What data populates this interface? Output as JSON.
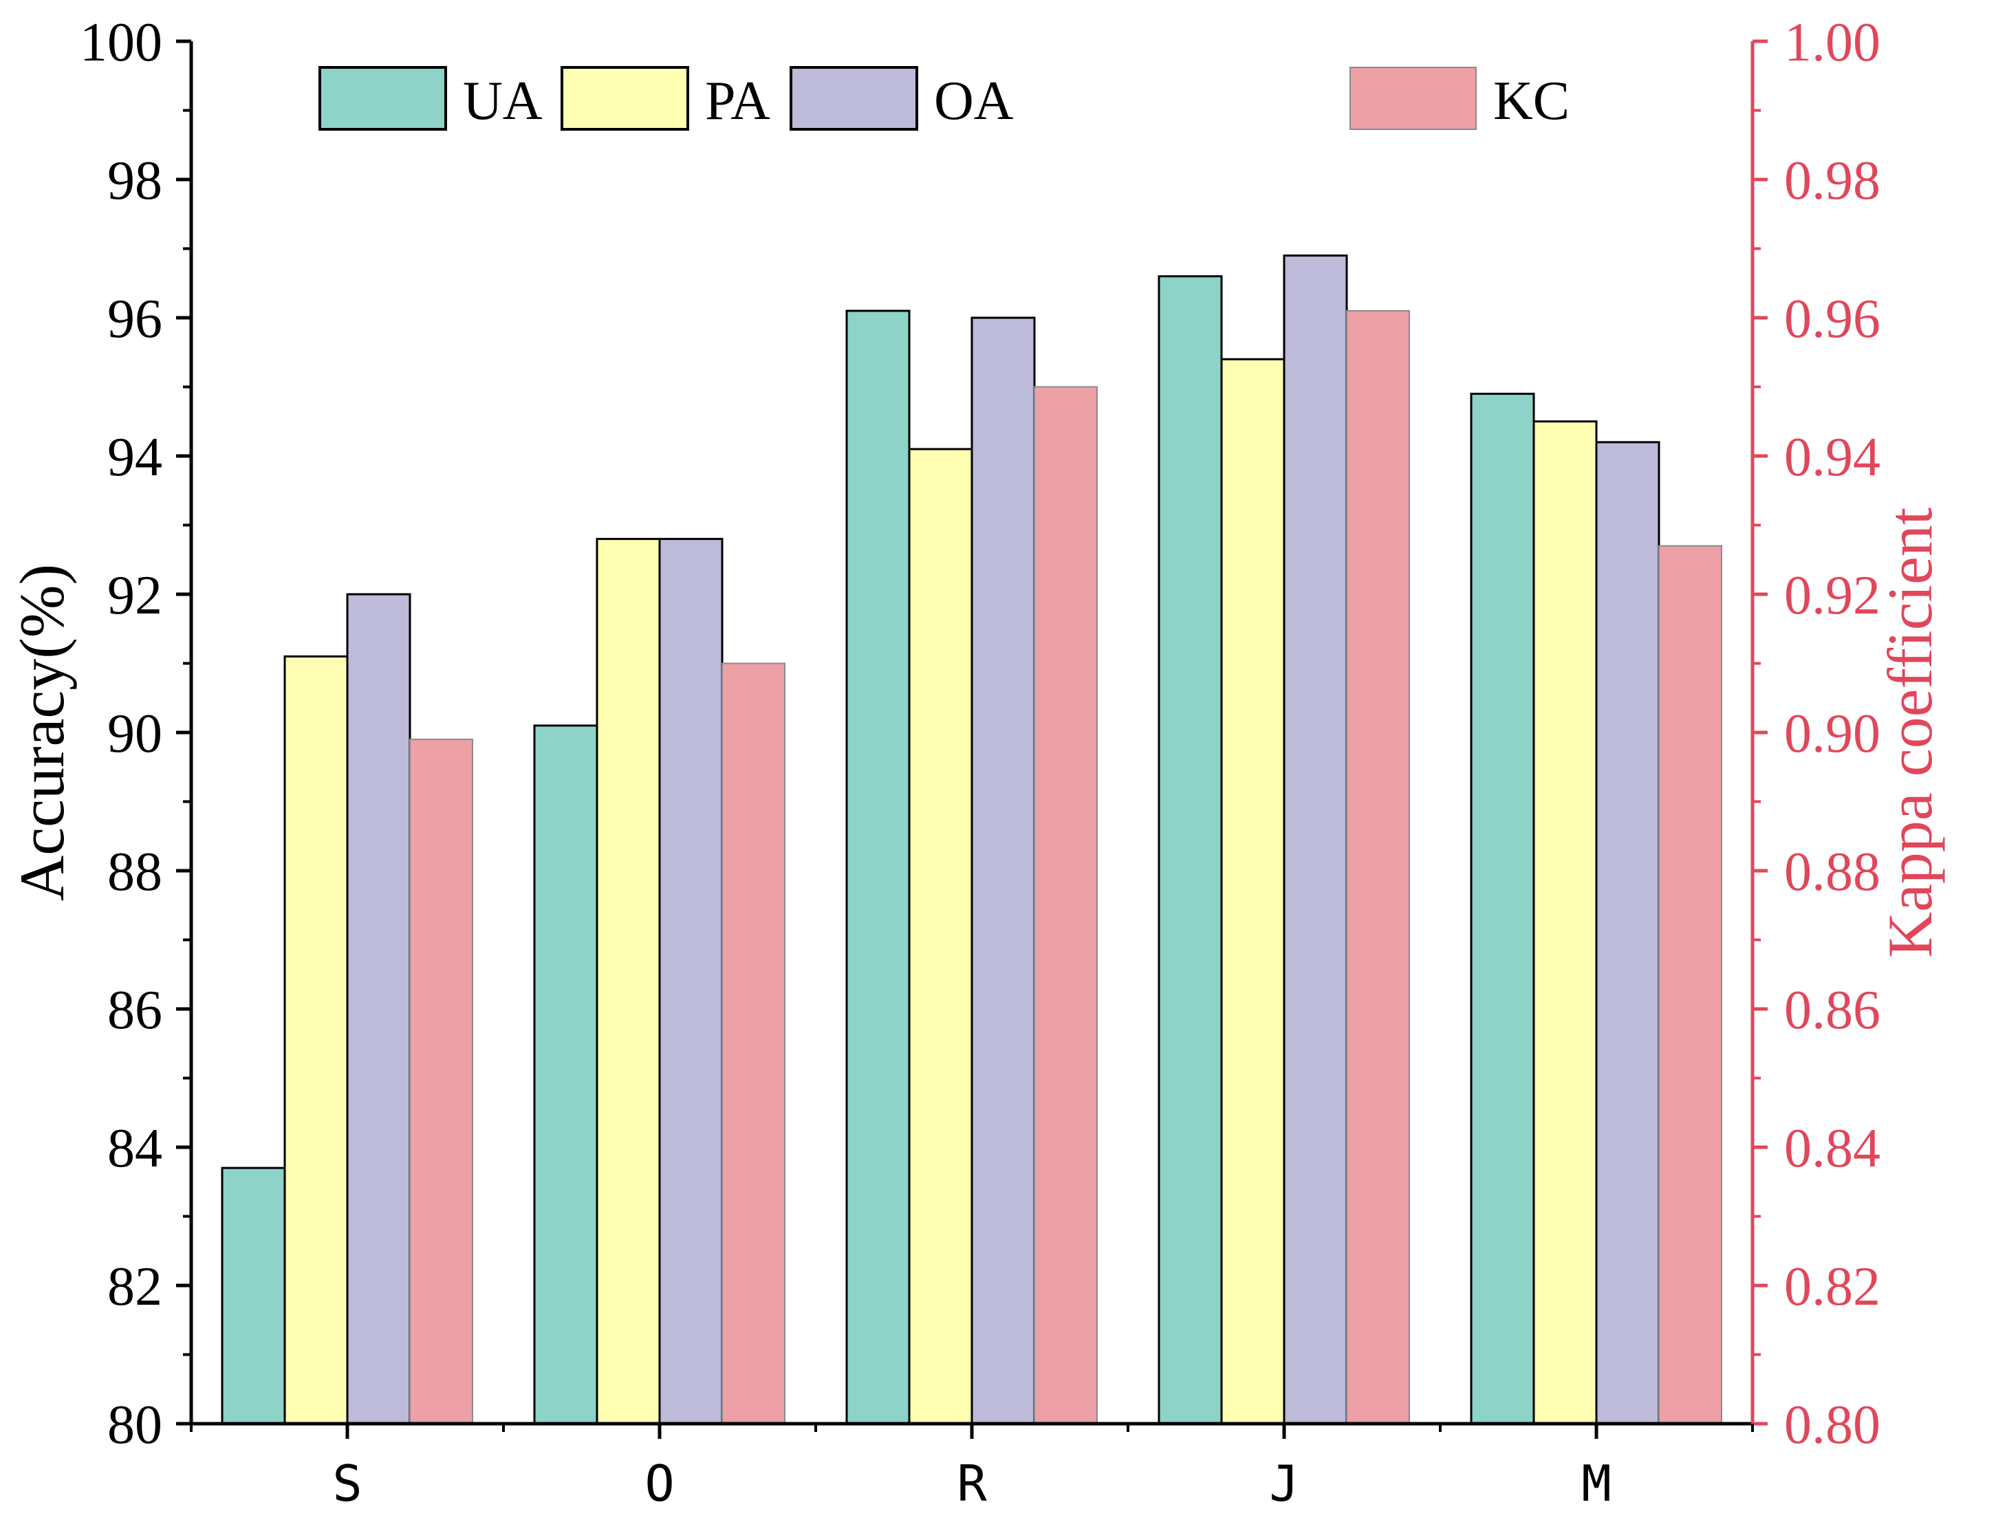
{
  "chart_data": {
    "type": "bar",
    "categories": [
      "S",
      "O",
      "R",
      "J",
      "M"
    ],
    "series": [
      {
        "name": "UA",
        "axis": "left",
        "color": "#8dd3c7",
        "values": [
          83.7,
          90.1,
          96.1,
          96.6,
          94.9
        ]
      },
      {
        "name": "PA",
        "axis": "left",
        "color": "#ffffb3",
        "values": [
          91.1,
          92.8,
          94.1,
          95.4,
          94.5
        ]
      },
      {
        "name": "OA",
        "axis": "left",
        "color": "#bebada",
        "values": [
          92.0,
          92.8,
          96.0,
          96.9,
          94.2
        ]
      },
      {
        "name": "KC",
        "axis": "right",
        "color": "#eda0a6",
        "values": [
          0.899,
          0.91,
          0.95,
          0.961,
          0.927
        ]
      }
    ],
    "ylabel": "Accuracy(%)",
    "ylabel_right": "Kappa coefficient",
    "ylim": [
      80,
      100
    ],
    "ylim_right": [
      0.8,
      1.0
    ],
    "yticks": [
      "80",
      "82",
      "84",
      "86",
      "88",
      "90",
      "92",
      "94",
      "96",
      "98",
      "100"
    ],
    "yticks_right": [
      "0.80",
      "0.82",
      "0.84",
      "0.86",
      "0.88",
      "0.90",
      "0.92",
      "0.94",
      "0.96",
      "0.98",
      "1.00"
    ],
    "right_axis_color": "#e0475b",
    "legend_position": "top",
    "grid": false
  }
}
